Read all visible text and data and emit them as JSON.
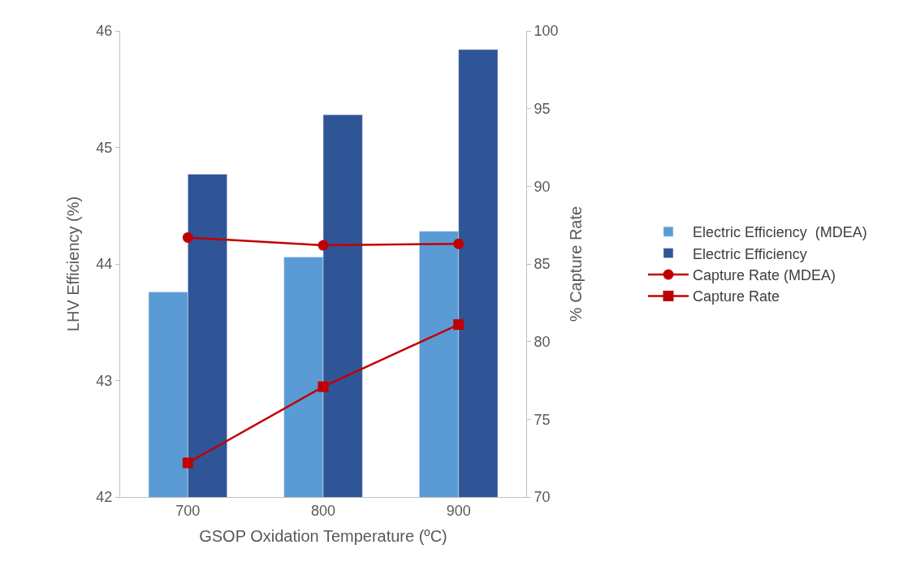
{
  "chart_data": {
    "type": "bar",
    "xlabel": "GSOP Oxidation Temperature (ºC)",
    "ylabel": "LHV Efficiency (%)",
    "y2label": "% Capture Rate",
    "categories": [
      "700",
      "800",
      "900"
    ],
    "series": [
      {
        "name": "Electric Efficiency  (MDEA)",
        "color": "#5b9bd5",
        "values": [
          43.76,
          44.06,
          44.28
        ]
      },
      {
        "name": "Electric Efficiency",
        "color": "#2f5597",
        "values": [
          44.77,
          45.28,
          45.84
        ]
      },
      {
        "name": "Capture Rate (MDEA)",
        "type": "line",
        "axis": "y2",
        "marker": "circle",
        "color": "#c00000",
        "values": [
          86.7,
          86.2,
          86.3
        ]
      },
      {
        "name": "Capture Rate",
        "type": "line",
        "axis": "y2",
        "marker": "square",
        "color": "#c00000",
        "values": [
          72.2,
          77.1,
          81.1
        ]
      }
    ],
    "ylim": [
      42,
      46
    ],
    "yticks": [
      42,
      43,
      44,
      45,
      46
    ],
    "y2lim": [
      70,
      100
    ],
    "y2ticks": [
      70,
      75,
      80,
      85,
      90,
      95,
      100
    ],
    "grid": false,
    "legend": "right"
  }
}
